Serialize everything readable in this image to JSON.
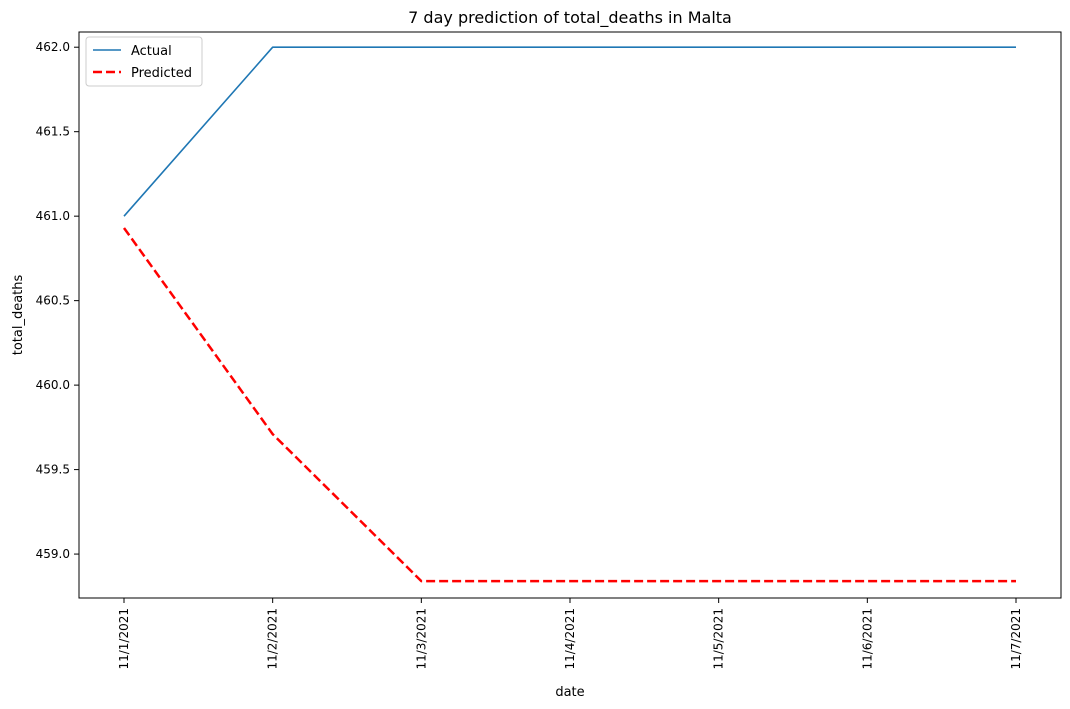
{
  "chart_data": {
    "type": "line",
    "title": "7 day prediction of total_deaths in Malta",
    "xlabel": "date",
    "ylabel": "total_deaths",
    "categories": [
      "11/1/2021",
      "11/2/2021",
      "11/3/2021",
      "11/4/2021",
      "11/5/2021",
      "11/6/2021",
      "11/7/2021"
    ],
    "y_ticks": [
      "459.0",
      "459.5",
      "460.0",
      "460.5",
      "461.0",
      "461.5",
      "462.0"
    ],
    "y_tick_values": [
      459.0,
      459.5,
      460.0,
      460.5,
      461.0,
      461.5,
      462.0
    ],
    "ylim": [
      458.74,
      462.09
    ],
    "grid": false,
    "legend_position": "top-left",
    "series": [
      {
        "name": "Actual",
        "color": "#1f77b4",
        "style": "solid",
        "values": [
          461.0,
          462.0,
          462.0,
          462.0,
          462.0,
          462.0,
          462.0
        ]
      },
      {
        "name": "Predicted",
        "color": "#ff0000",
        "style": "dashed",
        "values": [
          460.93,
          459.71,
          458.84,
          458.84,
          458.84,
          458.84,
          458.84
        ]
      }
    ]
  }
}
